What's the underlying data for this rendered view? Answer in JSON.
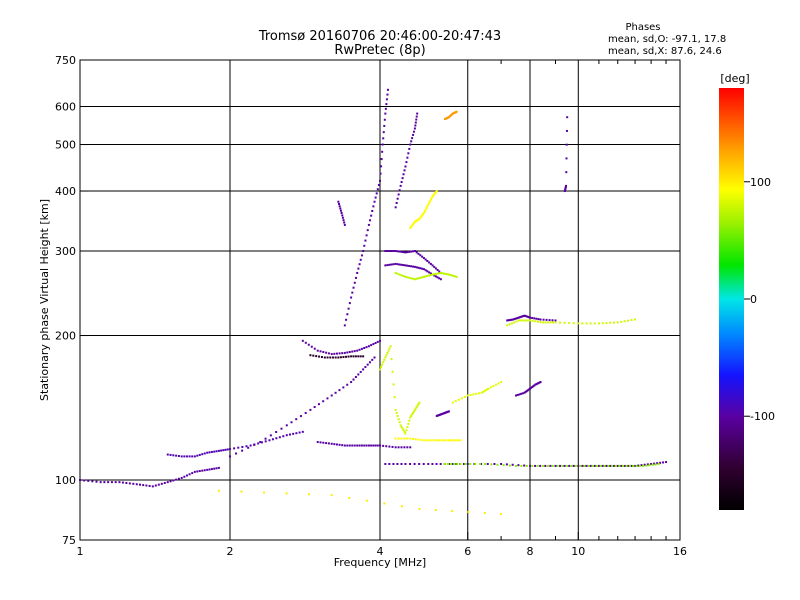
{
  "chart_data": {
    "type": "scatter",
    "title": "Tromsø 20160706 20:46:00-20:47:43",
    "subtitle": "RwPretec (8p)",
    "phase_info": {
      "heading": "Phases",
      "line_o": "mean, sd,O: -97.1, 17.8",
      "line_x": "mean, sd,X:  87.6, 24.6"
    },
    "xlabel": "Frequency [MHz]",
    "ylabel": "Stationary phase Virtual Height [km]",
    "x_scale": "log",
    "y_scale": "log",
    "xlim": [
      1,
      16
    ],
    "ylim": [
      75,
      750
    ],
    "x_ticks": [
      1,
      2,
      4,
      6,
      8,
      10,
      16
    ],
    "x_minor_ticks": [
      7,
      9,
      11,
      12,
      13,
      14,
      15
    ],
    "y_ticks": [
      75,
      100,
      200,
      300,
      400,
      500,
      600,
      750
    ],
    "grid": true,
    "colorbar": {
      "label": "[deg]",
      "range": [
        -180,
        180
      ],
      "ticks": [
        100,
        0,
        -100
      ]
    },
    "tracks": [
      {
        "phase": -100,
        "points": [
          [
            1.0,
            100
          ],
          [
            1.1,
            99
          ],
          [
            1.2,
            99
          ],
          [
            1.3,
            98
          ],
          [
            1.4,
            97
          ],
          [
            1.5,
            99
          ],
          [
            1.6,
            101
          ],
          [
            1.7,
            104
          ],
          [
            1.8,
            105
          ],
          [
            1.9,
            106
          ]
        ]
      },
      {
        "phase": -95,
        "points": [
          [
            1.5,
            113
          ],
          [
            1.6,
            112
          ],
          [
            1.7,
            112
          ],
          [
            1.8,
            114
          ],
          [
            1.9,
            115
          ],
          [
            2.0,
            116
          ],
          [
            2.2,
            118
          ],
          [
            2.4,
            121
          ],
          [
            2.6,
            124
          ],
          [
            2.8,
            126
          ]
        ]
      },
      {
        "phase": -100,
        "points": [
          [
            2.0,
            112
          ],
          [
            2.3,
            120
          ],
          [
            2.6,
            130
          ],
          [
            2.9,
            140
          ],
          [
            3.2,
            150
          ],
          [
            3.5,
            160
          ],
          [
            3.7,
            170
          ],
          [
            3.9,
            180
          ]
        ]
      },
      {
        "phase": -100,
        "points": [
          [
            3.0,
            120
          ],
          [
            3.2,
            119
          ],
          [
            3.4,
            118
          ],
          [
            3.6,
            118
          ],
          [
            3.8,
            118
          ],
          [
            4.0,
            118
          ],
          [
            4.3,
            117
          ],
          [
            4.6,
            117
          ]
        ]
      },
      {
        "phase": -100,
        "points": [
          [
            4.1,
            108
          ],
          [
            4.5,
            108
          ],
          [
            5.0,
            108
          ],
          [
            5.5,
            108
          ],
          [
            6.0,
            108
          ],
          [
            7.0,
            108
          ],
          [
            8.0,
            107
          ],
          [
            9.0,
            107
          ],
          [
            10.0,
            107
          ],
          [
            11.0,
            107
          ],
          [
            12.0,
            107
          ],
          [
            13.0,
            107
          ],
          [
            14.0,
            108
          ],
          [
            15.0,
            109
          ]
        ]
      },
      {
        "phase": 60,
        "points": [
          [
            5.4,
            108
          ],
          [
            5.8,
            108
          ],
          [
            6.5,
            108
          ],
          [
            7.5,
            107
          ],
          [
            8.5,
            107
          ],
          [
            9.5,
            107
          ],
          [
            10.5,
            107
          ],
          [
            11.5,
            107
          ],
          [
            12.5,
            107
          ],
          [
            13.5,
            107
          ],
          [
            14.5,
            108
          ]
        ]
      },
      {
        "phase": -100,
        "points": [
          [
            2.8,
            195
          ],
          [
            3.0,
            186
          ],
          [
            3.2,
            183
          ],
          [
            3.4,
            184
          ],
          [
            3.6,
            186
          ],
          [
            3.8,
            190
          ],
          [
            4.0,
            195
          ]
        ]
      },
      {
        "phase": -150,
        "points": [
          [
            2.9,
            182
          ],
          [
            3.1,
            180
          ],
          [
            3.3,
            180
          ],
          [
            3.5,
            181
          ],
          [
            3.7,
            181
          ]
        ]
      },
      {
        "phase": -100,
        "points": [
          [
            3.4,
            210
          ],
          [
            3.5,
            240
          ],
          [
            3.6,
            270
          ],
          [
            3.7,
            300
          ],
          [
            3.8,
            340
          ],
          [
            3.9,
            380
          ],
          [
            4.0,
            420
          ],
          [
            4.05,
            500
          ],
          [
            4.1,
            580
          ],
          [
            4.15,
            650
          ]
        ]
      },
      {
        "phase": -100,
        "points": [
          [
            3.3,
            380
          ],
          [
            3.35,
            360
          ],
          [
            3.4,
            340
          ]
        ]
      },
      {
        "phase": -100,
        "points": [
          [
            4.1,
            300
          ],
          [
            4.3,
            300
          ],
          [
            4.5,
            298
          ],
          [
            4.7,
            300
          ],
          [
            4.9,
            290
          ],
          [
            5.1,
            280
          ],
          [
            5.3,
            270
          ]
        ]
      },
      {
        "phase": -100,
        "points": [
          [
            4.1,
            280
          ],
          [
            4.3,
            282
          ],
          [
            4.5,
            280
          ],
          [
            4.7,
            278
          ],
          [
            4.9,
            275
          ],
          [
            5.1,
            268
          ],
          [
            5.3,
            262
          ]
        ]
      },
      {
        "phase": -100,
        "points": [
          [
            4.3,
            370
          ],
          [
            4.4,
            410
          ],
          [
            4.5,
            450
          ],
          [
            4.6,
            500
          ],
          [
            4.7,
            540
          ],
          [
            4.75,
            580
          ]
        ]
      },
      {
        "phase": 95,
        "points": [
          [
            4.6,
            335
          ],
          [
            4.7,
            345
          ],
          [
            4.8,
            350
          ],
          [
            4.9,
            360
          ],
          [
            5.0,
            375
          ],
          [
            5.1,
            390
          ],
          [
            5.2,
            400
          ]
        ]
      },
      {
        "phase": 75,
        "points": [
          [
            4.3,
            270
          ],
          [
            4.5,
            265
          ],
          [
            4.7,
            262
          ],
          [
            4.9,
            265
          ],
          [
            5.1,
            268
          ],
          [
            5.3,
            270
          ],
          [
            5.5,
            268
          ],
          [
            5.7,
            265
          ]
        ]
      },
      {
        "phase": 130,
        "points": [
          [
            5.4,
            565
          ],
          [
            5.5,
            570
          ],
          [
            5.6,
            580
          ],
          [
            5.7,
            585
          ]
        ]
      },
      {
        "phase": 80,
        "points": [
          [
            4.0,
            170
          ],
          [
            4.1,
            180
          ],
          [
            4.2,
            190
          ],
          [
            4.3,
            140
          ],
          [
            4.4,
            130
          ],
          [
            4.5,
            125
          ],
          [
            4.6,
            135
          ],
          [
            4.7,
            140
          ],
          [
            4.8,
            145
          ]
        ]
      },
      {
        "phase": 95,
        "points": [
          [
            4.3,
            122
          ],
          [
            4.6,
            122
          ],
          [
            4.9,
            121
          ],
          [
            5.2,
            121
          ],
          [
            5.5,
            121
          ],
          [
            5.8,
            121
          ]
        ]
      },
      {
        "phase": -100,
        "points": [
          [
            5.2,
            136
          ],
          [
            5.3,
            137
          ],
          [
            5.4,
            138
          ],
          [
            5.5,
            139
          ]
        ]
      },
      {
        "phase": 85,
        "points": [
          [
            5.6,
            145
          ],
          [
            6.0,
            150
          ],
          [
            6.4,
            152
          ],
          [
            6.6,
            155
          ],
          [
            7.0,
            160
          ]
        ]
      },
      {
        "phase": -100,
        "points": [
          [
            7.2,
            215
          ],
          [
            7.4,
            216
          ],
          [
            7.6,
            218
          ],
          [
            7.8,
            220
          ],
          [
            8.0,
            218
          ],
          [
            8.4,
            216
          ],
          [
            9.0,
            215
          ]
        ]
      },
      {
        "phase": 80,
        "points": [
          [
            7.2,
            210
          ],
          [
            7.6,
            215
          ],
          [
            8.0,
            215
          ],
          [
            8.5,
            213
          ],
          [
            9.0,
            213
          ],
          [
            10.0,
            212
          ],
          [
            11.0,
            212
          ],
          [
            12.0,
            213
          ],
          [
            13.0,
            216
          ]
        ]
      },
      {
        "phase": -100,
        "points": [
          [
            7.5,
            150
          ],
          [
            7.8,
            152
          ],
          [
            8.0,
            155
          ],
          [
            8.2,
            158
          ],
          [
            8.4,
            160
          ]
        ]
      },
      {
        "phase": -100,
        "points": [
          [
            9.4,
            400
          ],
          [
            9.45,
            410
          ],
          [
            9.5,
            570
          ]
        ]
      },
      {
        "phase": 100,
        "points": [
          [
            1.9,
            95
          ],
          [
            3.2,
            93
          ],
          [
            4.8,
            87
          ],
          [
            7.0,
            85
          ]
        ]
      }
    ]
  }
}
